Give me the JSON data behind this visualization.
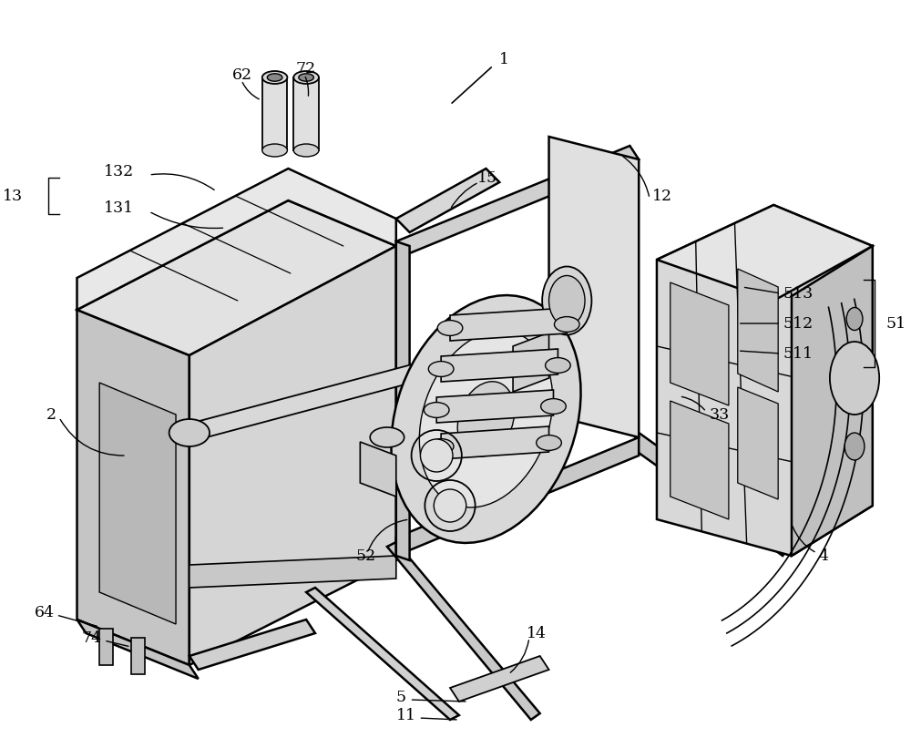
{
  "background_color": "#ffffff",
  "line_color": "#000000",
  "label_fontsize": 12.5,
  "fig_width": 10.0,
  "fig_height": 8.21,
  "dpi": 100,
  "light_gray": "#e8e8e8",
  "mid_gray": "#d0d0d0",
  "dark_gray": "#b8b8b8",
  "white_ish": "#f5f5f5"
}
